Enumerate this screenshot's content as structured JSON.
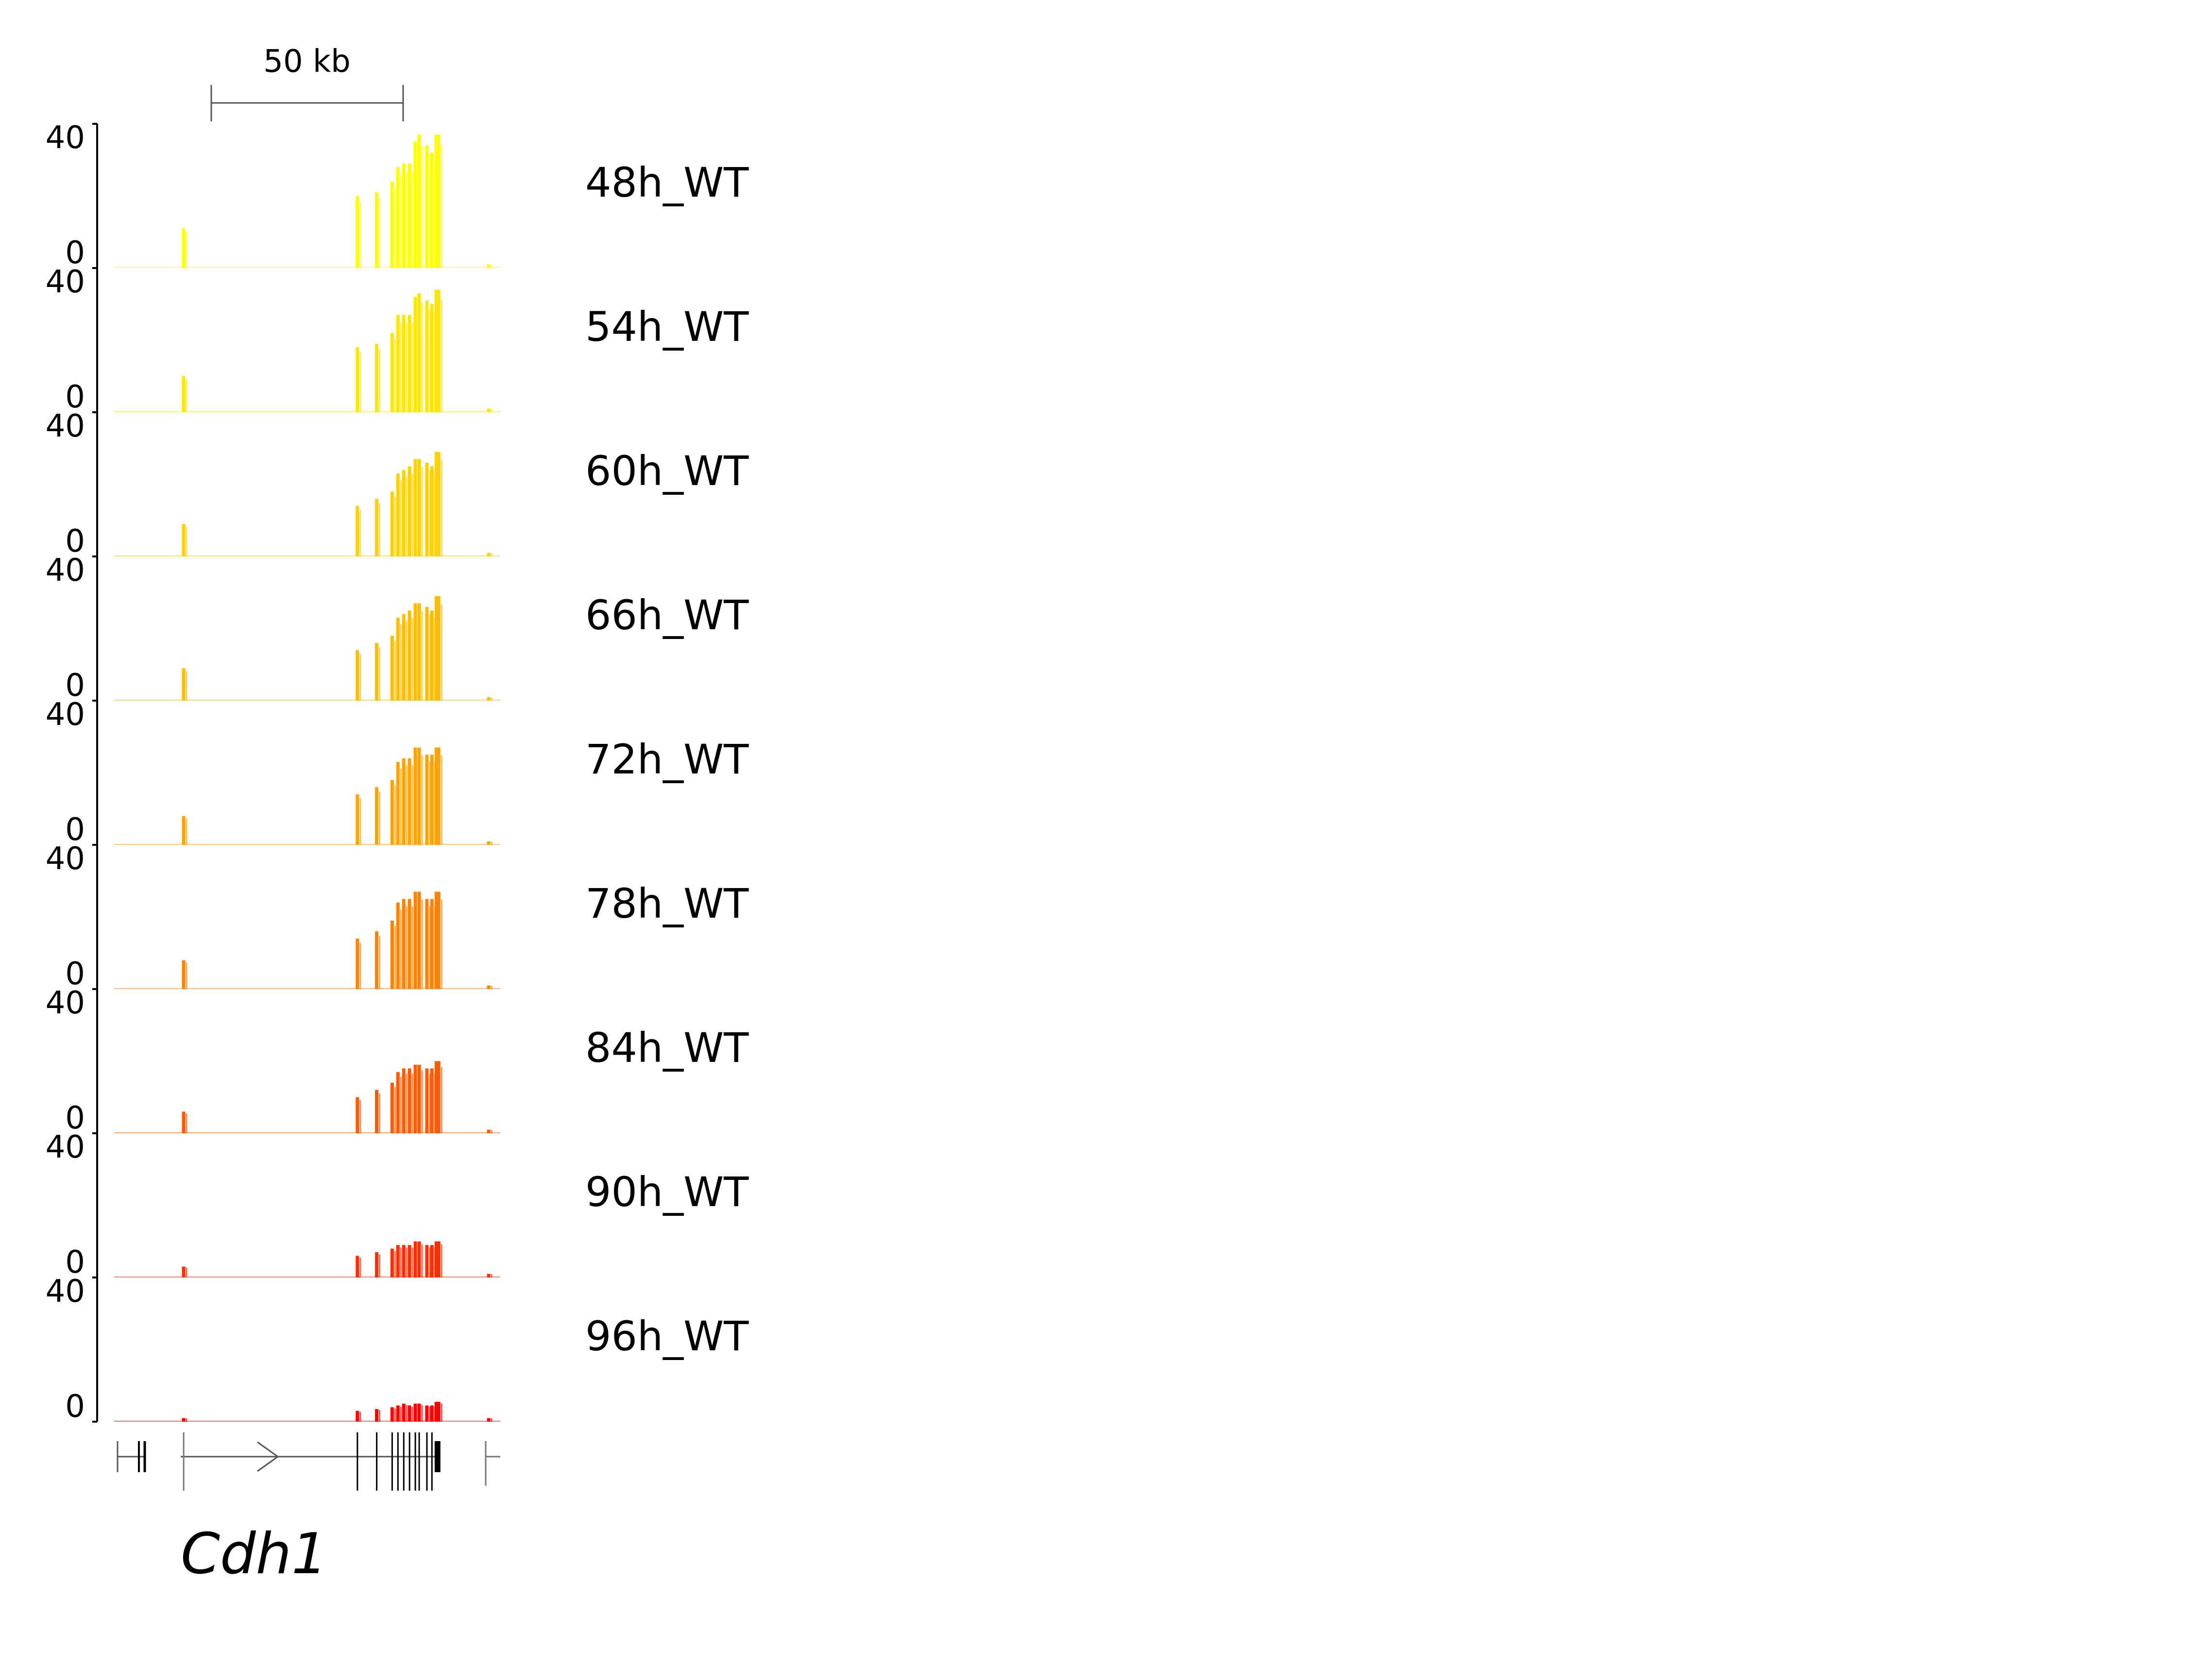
{
  "scale_bar": {
    "label": "50 kb",
    "length_kb": 50
  },
  "gene": {
    "name": "Cdh1"
  },
  "chart_data": {
    "type": "area",
    "title": "",
    "xlabel": "",
    "ylabel": "",
    "ylim": [
      0,
      40
    ],
    "ytick_labels": [
      "0",
      "40"
    ],
    "grid": false,
    "x_unit": "kb",
    "x_range_kb": [
      -1,
      99
    ],
    "exon_positions_kb": [
      17,
      62,
      67,
      71,
      72.5,
      74,
      75.5,
      77,
      78,
      80,
      81.3,
      82.5,
      96
    ],
    "last_exon_range_kb": [
      82,
      83.5
    ],
    "series": [
      {
        "name": "48h_WT",
        "color": "#ffff00",
        "values": [
          11,
          20,
          21,
          24,
          28,
          29,
          29,
          35,
          37,
          34,
          32,
          37,
          1
        ]
      },
      {
        "name": "54h_WT",
        "color": "#ffe600",
        "values": [
          10,
          18,
          19,
          22,
          27,
          27,
          27,
          32,
          33,
          31,
          30,
          34,
          1
        ]
      },
      {
        "name": "60h_WT",
        "color": "#ffd100",
        "values": [
          9,
          14,
          16,
          18,
          23,
          24,
          25,
          27,
          27,
          26,
          25,
          29,
          1
        ]
      },
      {
        "name": "66h_WT",
        "color": "#ffbc00",
        "values": [
          9,
          14,
          16,
          18,
          23,
          24,
          25,
          27,
          27,
          26,
          25,
          29,
          1
        ]
      },
      {
        "name": "72h_WT",
        "color": "#ffa300",
        "values": [
          8,
          14,
          16,
          18,
          23,
          24,
          24,
          27,
          27,
          25,
          25,
          27,
          1
        ]
      },
      {
        "name": "78h_WT",
        "color": "#ff8200",
        "values": [
          8,
          14,
          16,
          19,
          24,
          25,
          25,
          27,
          27,
          25,
          25,
          27,
          1
        ]
      },
      {
        "name": "84h_WT",
        "color": "#ff5a00",
        "values": [
          6,
          10,
          12,
          14,
          17,
          18,
          18,
          19,
          19,
          18,
          18,
          20,
          1
        ]
      },
      {
        "name": "90h_WT",
        "color": "#ff2d00",
        "values": [
          3,
          6,
          7,
          8,
          9,
          9,
          9,
          10,
          10,
          9,
          9,
          10,
          1
        ]
      },
      {
        "name": "96h_WT",
        "color": "#ff0000",
        "values": [
          1,
          3,
          3.5,
          4,
          4.5,
          5,
          4.5,
          5,
          5,
          4.5,
          4.5,
          5.5,
          1
        ]
      }
    ]
  }
}
